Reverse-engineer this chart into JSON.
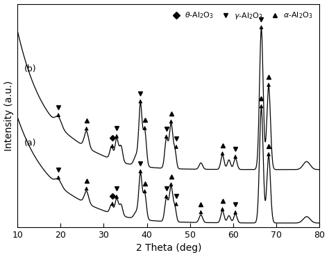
{
  "xlabel": "2 Theta (deg)",
  "ylabel": "Intensity (a.u.)",
  "xlim": [
    10,
    80
  ],
  "ylim": [
    0.0,
    1.0
  ],
  "label_a": "(a)",
  "label_b": "(b)",
  "line_color": "#000000",
  "background_color": "#ffffff",
  "curve_b_voffset": 0.38,
  "peaks_a": [
    {
      "x": 19.5,
      "type": "gamma"
    },
    {
      "x": 26.0,
      "type": "alpha"
    },
    {
      "x": 32.0,
      "type": "theta"
    },
    {
      "x": 33.2,
      "type": "gamma"
    },
    {
      "x": 38.5,
      "type": "gamma"
    },
    {
      "x": 39.5,
      "type": "alpha"
    },
    {
      "x": 44.5,
      "type": "gamma"
    },
    {
      "x": 45.6,
      "type": "alpha"
    },
    {
      "x": 52.5,
      "type": "alpha"
    },
    {
      "x": 57.5,
      "type": "alpha"
    },
    {
      "x": 61.0,
      "type": "gamma"
    },
    {
      "x": 66.5,
      "type": "alpha"
    },
    {
      "x": 68.5,
      "type": "alpha"
    }
  ],
  "peaks_b": [
    {
      "x": 19.5,
      "type": "gamma"
    },
    {
      "x": 26.0,
      "type": "alpha"
    },
    {
      "x": 32.0,
      "type": "theta"
    },
    {
      "x": 33.2,
      "type": "gamma"
    },
    {
      "x": 38.5,
      "type": "gamma"
    },
    {
      "x": 39.5,
      "type": "alpha"
    },
    {
      "x": 44.5,
      "type": "gamma"
    },
    {
      "x": 45.6,
      "type": "alpha"
    },
    {
      "x": 57.5,
      "type": "alpha"
    },
    {
      "x": 61.0,
      "type": "gamma"
    },
    {
      "x": 66.5,
      "type": "gamma"
    },
    {
      "x": 68.5,
      "type": "alpha"
    }
  ]
}
